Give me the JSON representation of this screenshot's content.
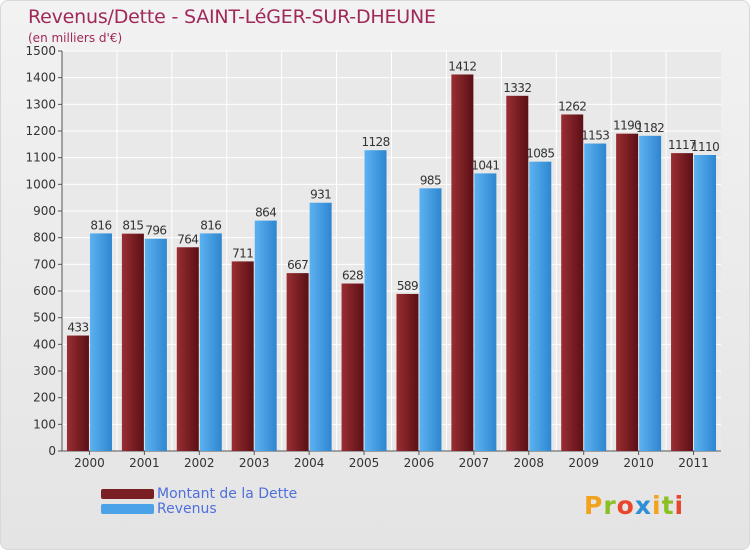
{
  "chart_data": {
    "type": "bar",
    "title": "Revenus/Dette - SAINT-LéGER-SUR-DHEUNE",
    "subtitle": "(en milliers d'€)",
    "categories": [
      "2000",
      "2001",
      "2002",
      "2003",
      "2004",
      "2005",
      "2006",
      "2007",
      "2008",
      "2009",
      "2010",
      "2011"
    ],
    "series": [
      {
        "name": "Montant de la Dette",
        "values": [
          433,
          815,
          764,
          711,
          667,
          628,
          589,
          1412,
          1332,
          1262,
          1190,
          1117
        ],
        "color": "#7a1f24"
      },
      {
        "name": "Revenus",
        "values": [
          816,
          796,
          816,
          864,
          931,
          1128,
          985,
          1041,
          1085,
          1153,
          1182,
          1110
        ],
        "color": "#4aa3e6"
      }
    ],
    "yticks": [
      "0",
      "100",
      "200",
      "300",
      "400",
      "500",
      "600",
      "700",
      "800",
      "900",
      "1000",
      "1100",
      "1200",
      "1300",
      "1400",
      "1500"
    ],
    "ylim": [
      0,
      1500
    ],
    "grid": true,
    "legend": "bottom-left"
  },
  "logo": {
    "text": "Proxiti",
    "colors": [
      "#f2a21b",
      "#8cbf26",
      "#e8452c",
      "#2f8fd6",
      "#f2a21b",
      "#8cbf26",
      "#e8452c"
    ]
  }
}
